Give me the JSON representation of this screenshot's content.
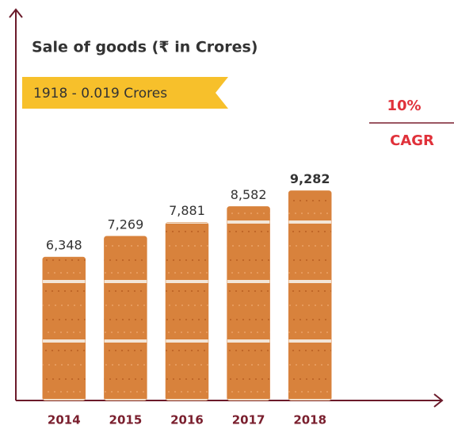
{
  "chart_data": {
    "type": "bar",
    "title": "Sale of goods (₹ in Crores)",
    "annotations": [
      "1918 - 0.019 Crores",
      "10%",
      "CAGR"
    ],
    "categories": [
      "2014",
      "2015",
      "2016",
      "2017",
      "2018"
    ],
    "values": [
      6348,
      7269,
      7881,
      8582,
      9282
    ],
    "value_labels": [
      "6,348",
      "7,269",
      "7,881",
      "8,582",
      "9,282"
    ],
    "color": "#d8823c",
    "ylim": [
      0,
      10000
    ]
  }
}
